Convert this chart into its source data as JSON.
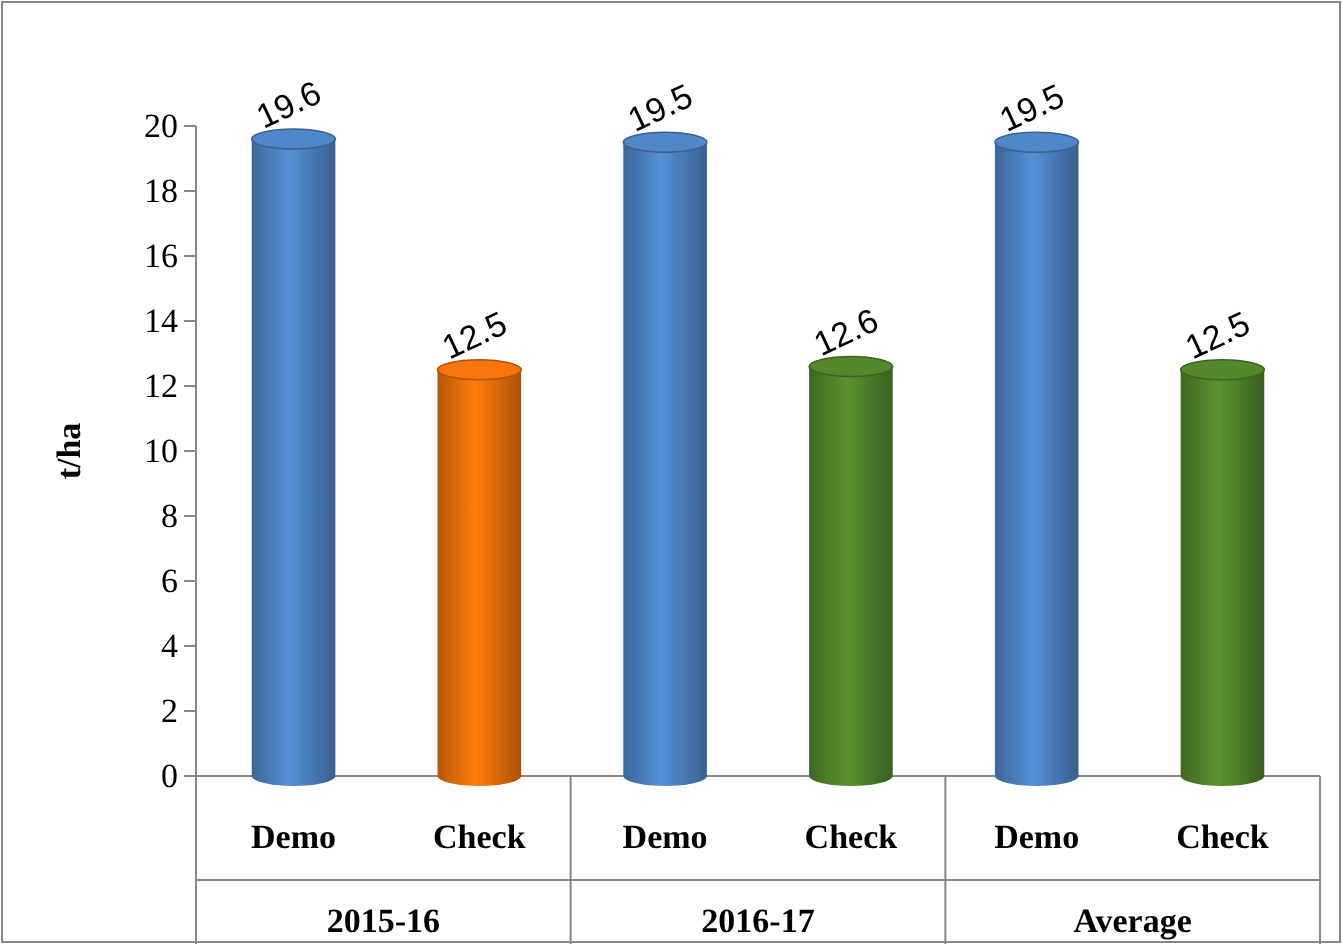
{
  "chart_data": {
    "type": "bar",
    "ylabel": "t/ha",
    "categories": [
      "Demo",
      "Check",
      "Demo",
      "Check",
      "Demo",
      "Check"
    ],
    "values": [
      19.6,
      12.5,
      19.5,
      12.6,
      19.5,
      12.5
    ],
    "colors": [
      "#4a7ebb",
      "#e46c0a",
      "#4a7ebb",
      "#4f7f2a",
      "#4a7ebb",
      "#4f7f2a"
    ],
    "annotations": [
      "2015-16",
      "2016-17",
      "Average"
    ],
    "ylim": [
      0,
      20
    ],
    "yticks": [
      0,
      2,
      4,
      6,
      8,
      10,
      12,
      14,
      16,
      18,
      20
    ],
    "data_labels": true,
    "grid": false
  }
}
